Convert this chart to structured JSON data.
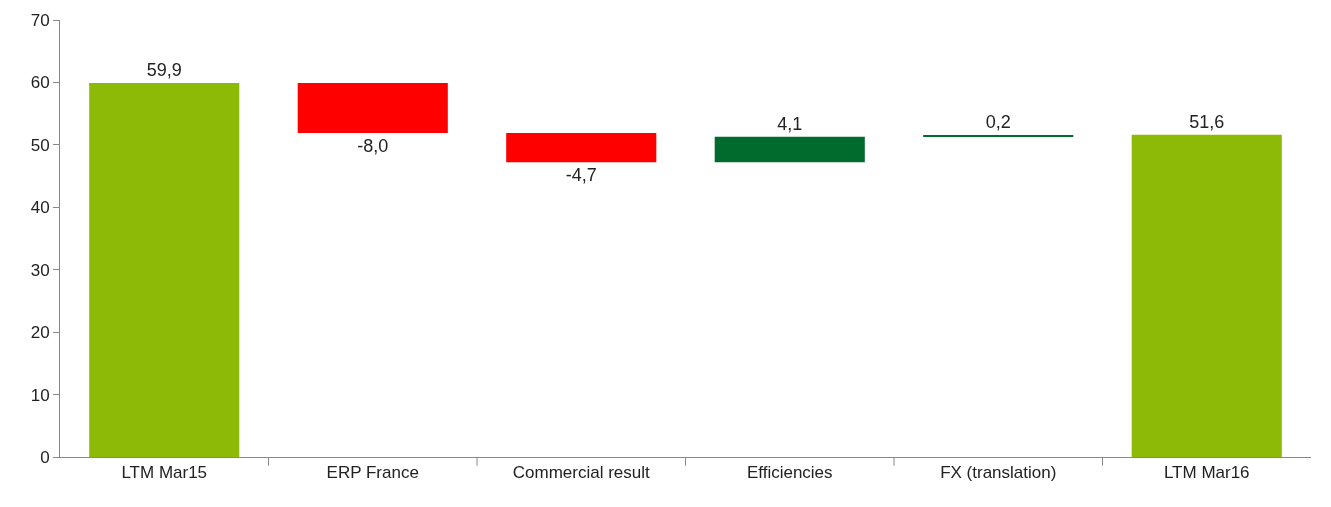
{
  "chart_data": {
    "type": "bar",
    "categories": [
      "LTM Mar15",
      "ERP France",
      "Commercial result",
      "Efficiencies",
      "FX (translation)",
      "LTM Mar16"
    ],
    "values": [
      59.9,
      -8.0,
      -4.7,
      4.1,
      0.2,
      51.6
    ],
    "base": [
      0,
      59.9,
      51.9,
      47.2,
      51.3,
      0
    ],
    "value_labels": [
      "59,9",
      "-8,0",
      "-4,7",
      "4,1",
      "0,2",
      "51,6"
    ],
    "colors": [
      "#8cba07",
      "#ff0000",
      "#ff0000",
      "#006b2d",
      "#006b2d",
      "#8cba07"
    ],
    "ylim": [
      0,
      70
    ],
    "yticks": [
      0,
      10,
      20,
      30,
      40,
      50,
      60,
      70
    ]
  }
}
